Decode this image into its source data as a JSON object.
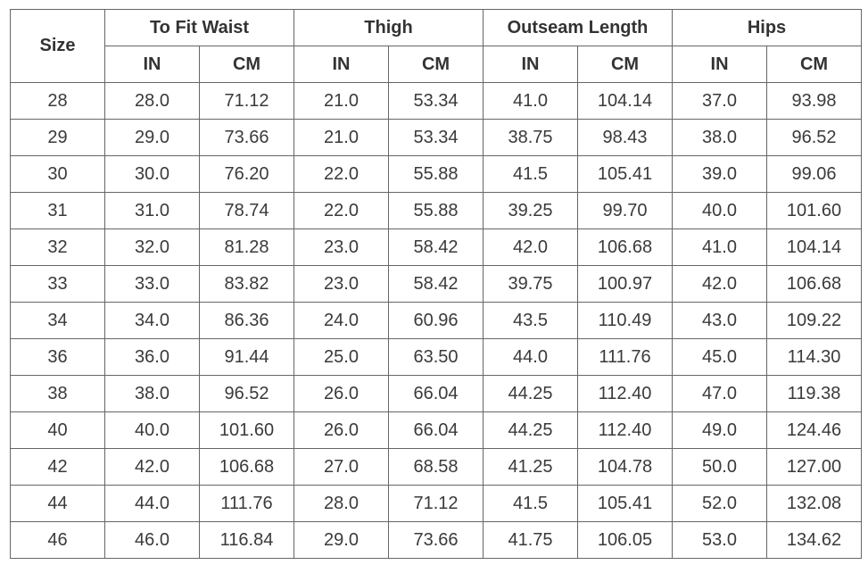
{
  "table": {
    "size_header": "Size",
    "groups": [
      {
        "label": "To Fit Waist",
        "units": [
          "IN",
          "CM"
        ]
      },
      {
        "label": "Thigh",
        "units": [
          "IN",
          "CM"
        ]
      },
      {
        "label": "Outseam Length",
        "units": [
          "IN",
          "CM"
        ]
      },
      {
        "label": "Hips",
        "units": [
          "IN",
          "CM"
        ]
      }
    ],
    "rows": [
      [
        "28",
        "28.0",
        "71.12",
        "21.0",
        "53.34",
        "41.0",
        "104.14",
        "37.0",
        "93.98"
      ],
      [
        "29",
        "29.0",
        "73.66",
        "21.0",
        "53.34",
        "38.75",
        "98.43",
        "38.0",
        "96.52"
      ],
      [
        "30",
        "30.0",
        "76.20",
        "22.0",
        "55.88",
        "41.5",
        "105.41",
        "39.0",
        "99.06"
      ],
      [
        "31",
        "31.0",
        "78.74",
        "22.0",
        "55.88",
        "39.25",
        "99.70",
        "40.0",
        "101.60"
      ],
      [
        "32",
        "32.0",
        "81.28",
        "23.0",
        "58.42",
        "42.0",
        "106.68",
        "41.0",
        "104.14"
      ],
      [
        "33",
        "33.0",
        "83.82",
        "23.0",
        "58.42",
        "39.75",
        "100.97",
        "42.0",
        "106.68"
      ],
      [
        "34",
        "34.0",
        "86.36",
        "24.0",
        "60.96",
        "43.5",
        "110.49",
        "43.0",
        "109.22"
      ],
      [
        "36",
        "36.0",
        "91.44",
        "25.0",
        "63.50",
        "44.0",
        "111.76",
        "45.0",
        "114.30"
      ],
      [
        "38",
        "38.0",
        "96.52",
        "26.0",
        "66.04",
        "44.25",
        "112.40",
        "47.0",
        "119.38"
      ],
      [
        "40",
        "40.0",
        "101.60",
        "26.0",
        "66.04",
        "44.25",
        "112.40",
        "49.0",
        "124.46"
      ],
      [
        "42",
        "42.0",
        "106.68",
        "27.0",
        "68.58",
        "41.25",
        "104.78",
        "50.0",
        "127.00"
      ],
      [
        "44",
        "44.0",
        "111.76",
        "28.0",
        "71.12",
        "41.5",
        "105.41",
        "52.0",
        "132.08"
      ],
      [
        "46",
        "46.0",
        "116.84",
        "29.0",
        "73.66",
        "41.75",
        "106.05",
        "53.0",
        "134.62"
      ]
    ]
  }
}
